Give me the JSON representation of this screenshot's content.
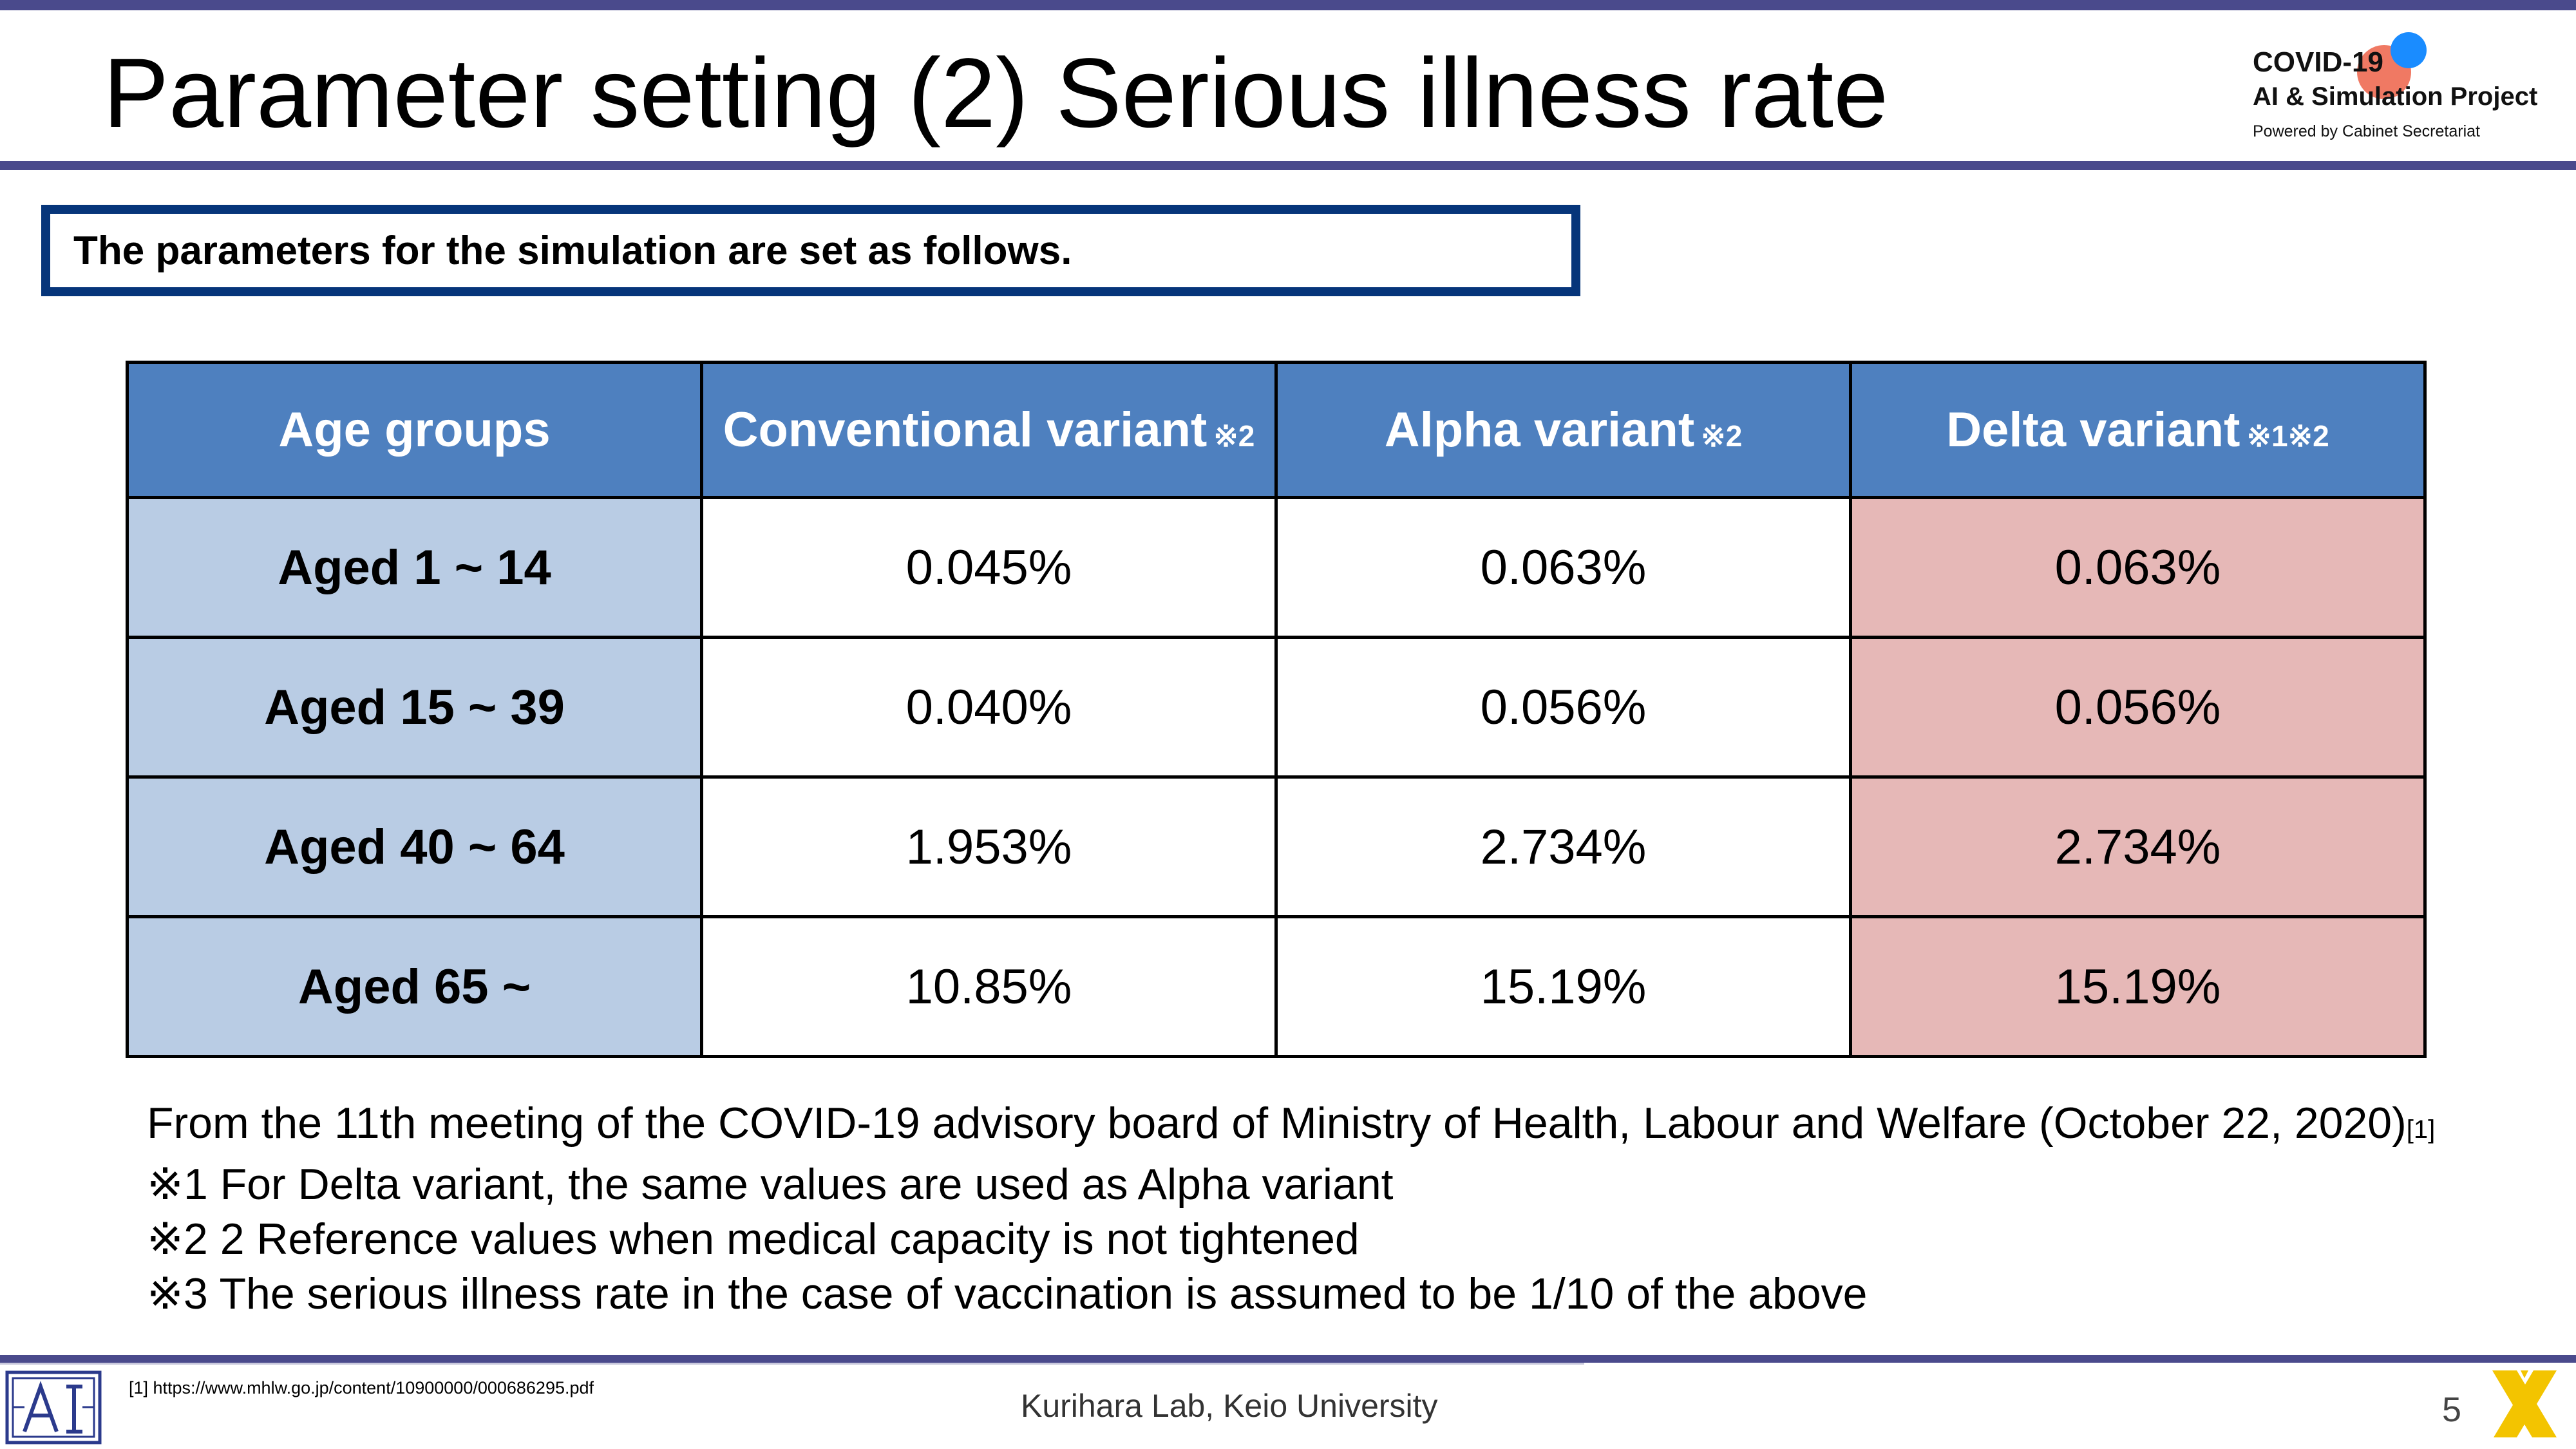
{
  "header": {
    "title": "Parameter setting (2) Serious illness rate",
    "logo": {
      "line1": "COVID-19",
      "line2": "AI & Simulation Project",
      "line3": "Powered by Cabinet Secretariat",
      "dot_colors": [
        "#ee6a52",
        "#1a8cff"
      ]
    }
  },
  "intro": "The parameters for the simulation are set as follows.",
  "table": {
    "headers": [
      {
        "label": "Age groups",
        "mark": ""
      },
      {
        "label": "Conventional variant",
        "mark": "※2"
      },
      {
        "label": "Alpha variant",
        "mark": "※2"
      },
      {
        "label": "Delta variant",
        "mark": "※1※2"
      }
    ],
    "rows": [
      {
        "age": "Aged 1 ~ 14",
        "conventional": "0.045%",
        "alpha": "0.063%",
        "delta": "0.063%"
      },
      {
        "age": "Aged 15 ~ 39",
        "conventional": "0.040%",
        "alpha": "0.056%",
        "delta": "0.056%"
      },
      {
        "age": "Aged 40 ~ 64",
        "conventional": "1.953%",
        "alpha": "2.734%",
        "delta": "2.734%"
      },
      {
        "age": "Aged 65 ~",
        "conventional": "10.85%",
        "alpha": "15.19%",
        "delta": "15.19%"
      }
    ],
    "colors": {
      "header": "#4e80bf",
      "age_column": "#b9cce4",
      "delta_column": "#e6b8b7"
    }
  },
  "notes": {
    "source": "From the 11th meeting of the COVID-19 advisory board of Ministry of Health, Labour and Welfare (October 22, 2020)",
    "source_ref": "[1]",
    "note1": "※1 For Delta variant, the same values are used as Alpha variant",
    "note2": "※2 2 Reference values when medical capacity is not tightened",
    "note3": "※3 The serious illness rate in the case of vaccination is assumed to be 1/10 of the above"
  },
  "footer": {
    "footnote": "[1] https://www.mhlw.go.jp/content/10900000/000686295.pdf",
    "lab": "Kurihara Lab, Keio University",
    "page": "5",
    "icons": [
      "ai-lab-logo-icon",
      "x-logo-icon"
    ]
  }
}
